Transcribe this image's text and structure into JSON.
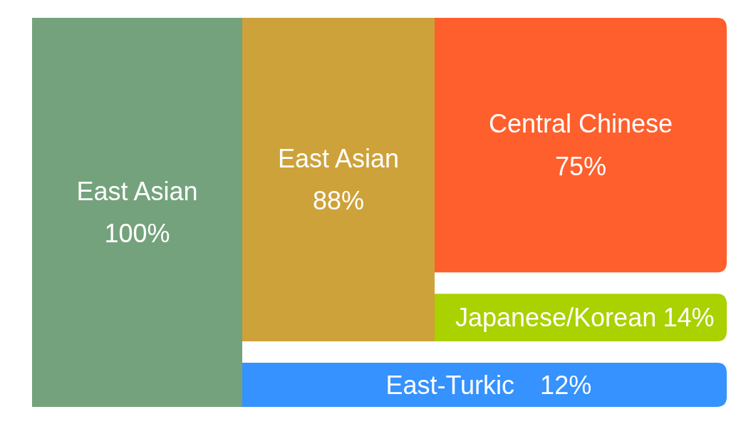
{
  "chart_data": {
    "type": "other",
    "categories": [
      "East Asian",
      "East Asian",
      "Central Chinese",
      "Japanese/Korean",
      "East-Turkic"
    ],
    "values": [
      100,
      88,
      75,
      14,
      12
    ],
    "value_labels": [
      "100%",
      "88%",
      "75%",
      "14%",
      "12%"
    ],
    "colors": [
      "#74a27c",
      "#cda23a",
      "#ff5f2d",
      "#aad100",
      "#3592ff"
    ]
  }
}
